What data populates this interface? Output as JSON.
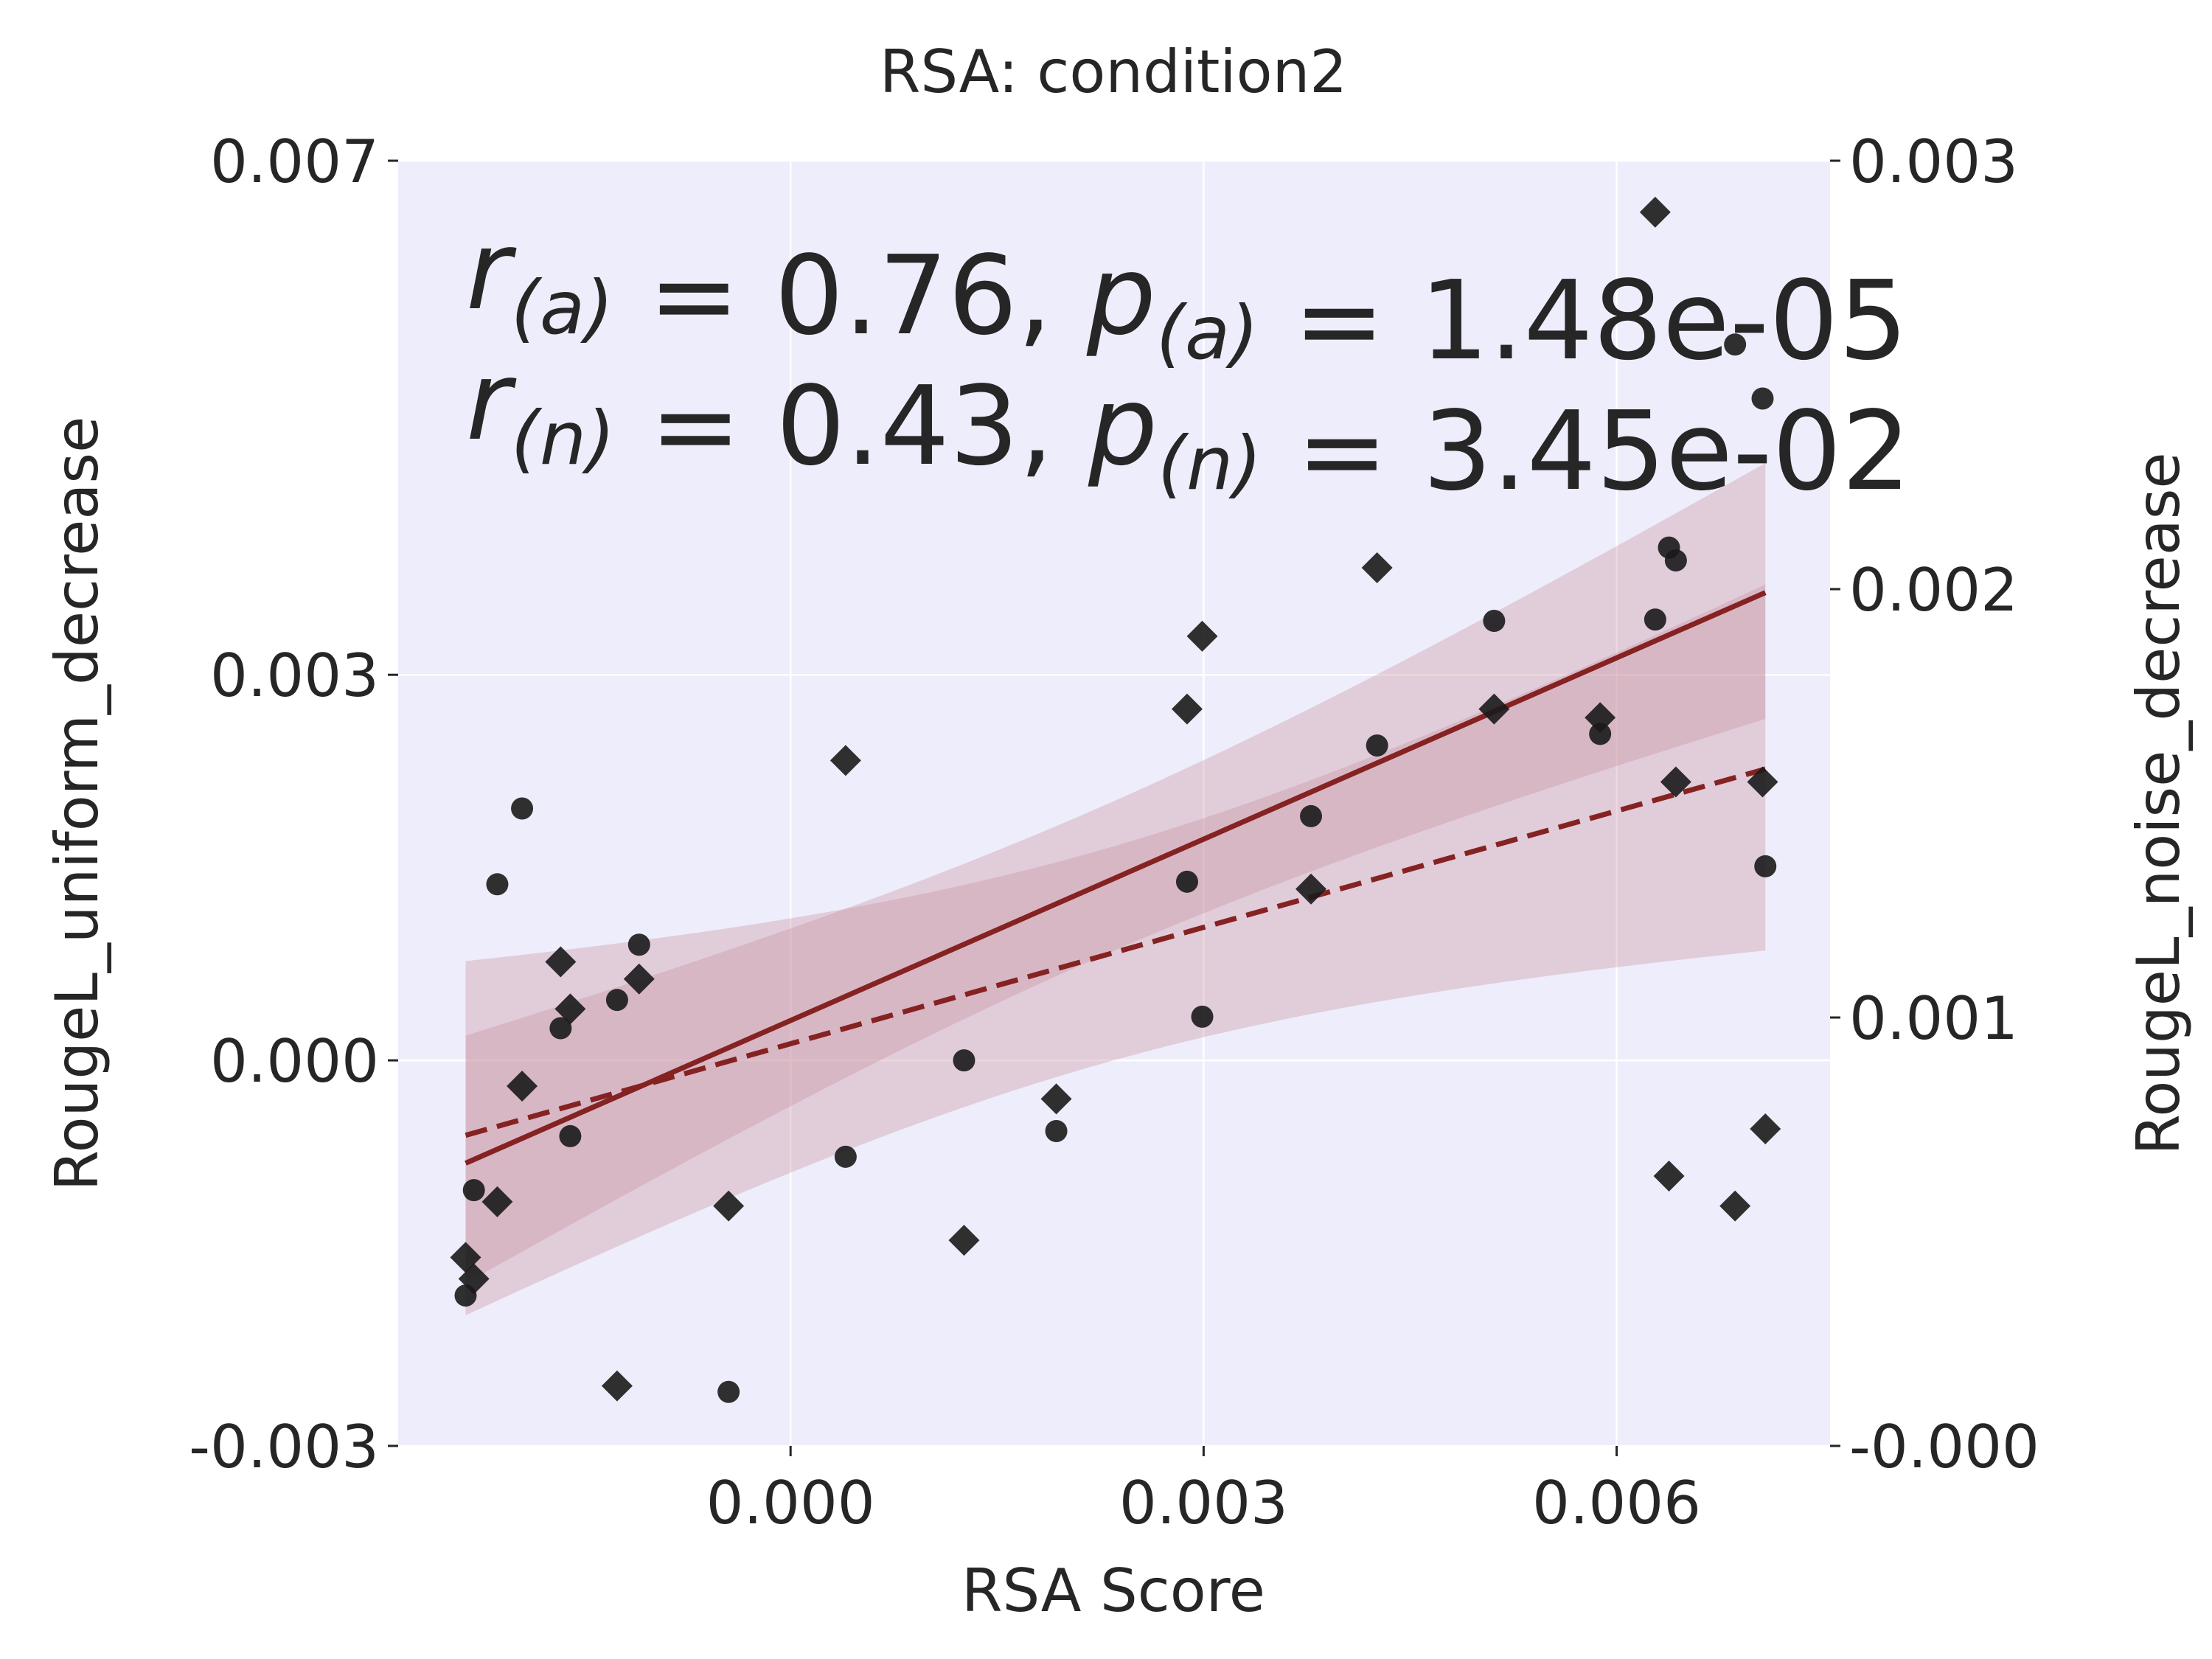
{
  "chart_data": {
    "type": "scatter",
    "title": "RSA: condition2",
    "xlabel": "RSA Score",
    "ylabel_left": "RougeL_uniform_decrease",
    "ylabel_right": "RougeL_noise_decrease",
    "xlim": [
      -0.00285,
      0.00755
    ],
    "ylim_left": [
      -0.003,
      0.007
    ],
    "ylim_right": [
      0.0,
      0.003
    ],
    "x_ticks": [
      0.0,
      0.003,
      0.006
    ],
    "x_tick_labels": [
      "0.000",
      "0.003",
      "0.006"
    ],
    "y_left_ticks": [
      -0.003,
      0.0,
      0.003,
      0.007
    ],
    "y_left_tick_labels": [
      "-0.003",
      "0.000",
      "0.003",
      "0.007"
    ],
    "y_right_ticks": [
      0.0,
      0.001,
      0.002,
      0.003
    ],
    "y_right_tick_labels": [
      "-0.000",
      "0.001",
      "0.002",
      "0.003"
    ],
    "grid": true,
    "stats": {
      "r_a": "0.76",
      "p_a": "1.48e-05",
      "r_n": "0.43",
      "p_n": "3.45e-02"
    },
    "colors": {
      "background": "#eeedfb",
      "line": "#852222",
      "band": "#c9909f",
      "marker": "#1a1a1a"
    },
    "series": [
      {
        "axis": "left",
        "marker": "circle",
        "points": [
          [
            -0.00236,
            -0.00183
          ],
          [
            -0.0023,
            -0.00101
          ],
          [
            -0.00213,
            0.00137
          ],
          [
            -0.00195,
            0.00196
          ],
          [
            -0.00167,
            0.00025
          ],
          [
            -0.0016,
            -0.00059
          ],
          [
            -0.00126,
            0.00047
          ],
          [
            -0.0011,
            0.0009
          ],
          [
            -0.00045,
            -0.00258
          ],
          [
            0.0004,
            -0.00075
          ],
          [
            0.00126,
            0.0
          ],
          [
            0.00193,
            -0.00055
          ],
          [
            0.00288,
            0.00139
          ],
          [
            0.00299,
            0.00034
          ],
          [
            0.00378,
            0.0019
          ],
          [
            0.00426,
            0.00245
          ],
          [
            0.00511,
            0.00342
          ],
          [
            0.00588,
            0.00254
          ],
          [
            0.00628,
            0.00343
          ],
          [
            0.00638,
            0.00399
          ],
          [
            0.00643,
            0.00389
          ],
          [
            0.00686,
            0.00557
          ],
          [
            0.00706,
            0.00515
          ],
          [
            0.00708,
            0.00151
          ]
        ],
        "fit": {
          "x": [
            -0.00236,
            0.00708
          ],
          "y": [
            -0.0008,
            0.00364
          ]
        }
      },
      {
        "axis": "right",
        "marker": "diamond",
        "points": [
          [
            -0.00236,
            0.00044
          ],
          [
            -0.0023,
            0.00039
          ],
          [
            -0.00213,
            0.00057
          ],
          [
            -0.00195,
            0.00084
          ],
          [
            -0.00167,
            0.00113
          ],
          [
            -0.0016,
            0.00102
          ],
          [
            -0.00126,
            0.00014
          ],
          [
            -0.0011,
            0.00109
          ],
          [
            -0.00045,
            0.00056
          ],
          [
            0.0004,
            0.0016
          ],
          [
            0.00126,
            0.00048
          ],
          [
            0.00193,
            0.00081
          ],
          [
            0.00288,
            0.00172
          ],
          [
            0.00299,
            0.00189
          ],
          [
            0.00378,
            0.0013
          ],
          [
            0.00426,
            0.00205
          ],
          [
            0.00511,
            0.00172
          ],
          [
            0.00588,
            0.0017
          ],
          [
            0.00628,
            0.00288
          ],
          [
            0.00638,
            0.00063
          ],
          [
            0.00643,
            0.00155
          ],
          [
            0.00686,
            0.00056
          ],
          [
            0.00706,
            0.00155
          ],
          [
            0.00708,
            0.00074
          ]
        ],
        "fit": {
          "x": [
            -0.00236,
            0.00708
          ],
          "y": [
            0.000725,
            0.00158
          ]
        }
      }
    ]
  }
}
